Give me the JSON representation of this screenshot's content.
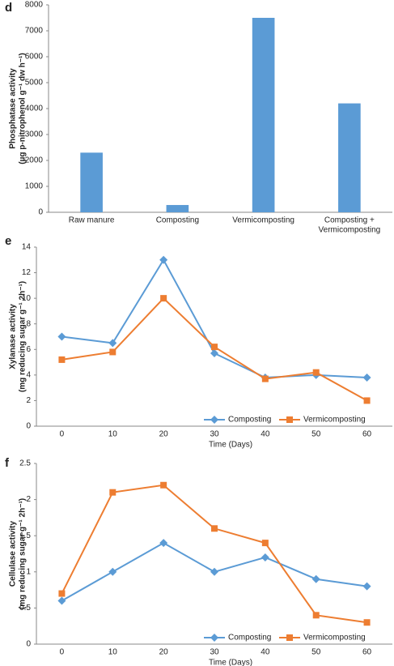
{
  "chart_data": [
    {
      "type": "bar",
      "panel_label": "d",
      "ylabel": [
        "Phosphatase activity",
        "(µg p-nitrophenol g⁻¹ dw h⁻¹)"
      ],
      "categories": [
        [
          "Raw manure"
        ],
        [
          "Composting"
        ],
        [
          "Vermicomposting"
        ],
        [
          "Composting +",
          "Vermicomposting"
        ]
      ],
      "values": [
        2300,
        280,
        7500,
        4200
      ],
      "color": "#5b9bd5",
      "ylim": [
        0,
        8000
      ],
      "yticks": [
        0,
        1000,
        2000,
        3000,
        4000,
        5000,
        6000,
        7000,
        8000
      ],
      "grid": false
    },
    {
      "type": "line",
      "panel_label": "e",
      "ylabel": [
        "Xylanase activity",
        "(mg reducing sugar g⁻¹ 2h⁻¹)"
      ],
      "xlabel": "Time (Days)",
      "categories": [
        "0",
        "10",
        "20",
        "30",
        "40",
        "50",
        "60"
      ],
      "series": [
        {
          "name": "Composting",
          "color": "#5b9bd5",
          "marker": "diamond",
          "values": [
            7,
            6.5,
            13,
            5.7,
            3.8,
            4,
            3.8
          ]
        },
        {
          "name": "Vermicomposting",
          "color": "#ed7d31",
          "marker": "square",
          "values": [
            5.2,
            5.8,
            10,
            6.2,
            3.7,
            4.2,
            2
          ]
        }
      ],
      "ylim": [
        0,
        14
      ],
      "yticks": [
        0,
        2,
        4,
        6,
        8,
        10,
        12,
        14
      ],
      "grid": false,
      "legend": "bottom"
    },
    {
      "type": "line",
      "panel_label": "f",
      "ylabel": [
        "Cellulase activity",
        "(mg reducing sugar g⁻¹ 2h⁻¹)"
      ],
      "xlabel": "Time (Days)",
      "categories": [
        "0",
        "10",
        "20",
        "30",
        "40",
        "50",
        "60"
      ],
      "series": [
        {
          "name": "Composting",
          "color": "#5b9bd5",
          "marker": "diamond",
          "values": [
            0.6,
            1.0,
            1.4,
            1.0,
            1.2,
            0.9,
            0.8
          ]
        },
        {
          "name": "Vermicomposting",
          "color": "#ed7d31",
          "marker": "square",
          "values": [
            0.7,
            2.1,
            2.2,
            1.6,
            1.4,
            0.4,
            0.3
          ]
        }
      ],
      "ylim": [
        0,
        2.5
      ],
      "yticks": [
        0,
        0.5,
        1,
        1.5,
        2,
        2.5
      ],
      "grid": false,
      "legend": "bottom"
    }
  ]
}
